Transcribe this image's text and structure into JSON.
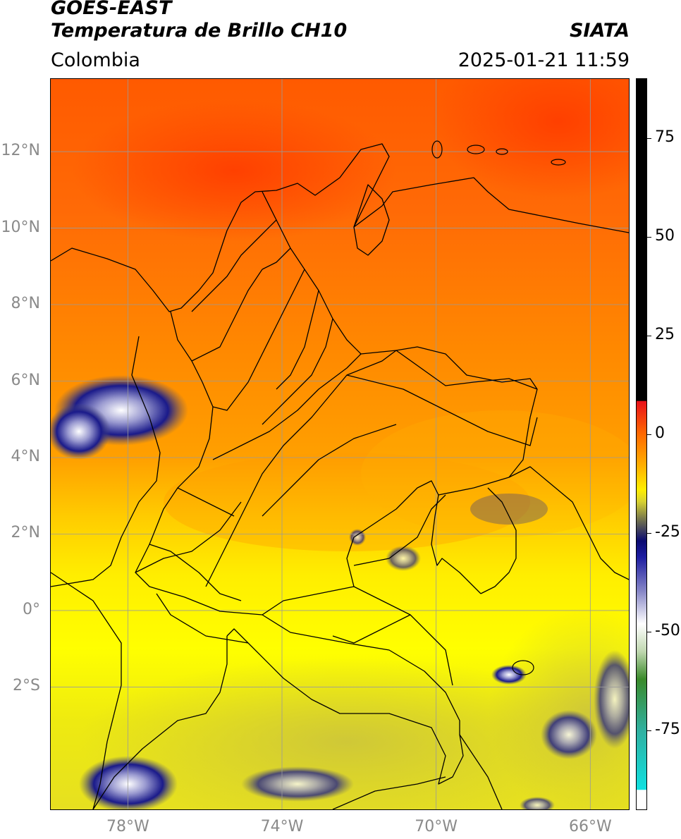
{
  "header": {
    "satellite": "GOES-EAST",
    "product": "Temperatura de Brillo CH10",
    "brand": "SIATA",
    "region": "Colombia",
    "datetime": "2025-01-21 11:59"
  },
  "map": {
    "lat_range": [
      -5.2,
      13.9
    ],
    "lon_range": [
      -80.0,
      -65.0
    ],
    "lat_ticks": [
      {
        "value": 12,
        "label": "12°N"
      },
      {
        "value": 10,
        "label": "10°N"
      },
      {
        "value": 8,
        "label": "8°N"
      },
      {
        "value": 6,
        "label": "6°N"
      },
      {
        "value": 4,
        "label": "4°N"
      },
      {
        "value": 2,
        "label": "2°N"
      },
      {
        "value": 0,
        "label": "0°"
      },
      {
        "value": -2,
        "label": "2°S"
      }
    ],
    "lon_ticks": [
      {
        "value": -78,
        "label": "78°W"
      },
      {
        "value": -74,
        "label": "74°W"
      },
      {
        "value": -70,
        "label": "70°W"
      },
      {
        "value": -66,
        "label": "66°W"
      }
    ],
    "gridlines": true
  },
  "colorbar": {
    "range": [
      -95,
      90
    ],
    "ticks": [
      {
        "value": 75,
        "label": "75"
      },
      {
        "value": 50,
        "label": "50"
      },
      {
        "value": 25,
        "label": "25"
      },
      {
        "value": 0,
        "label": "0"
      },
      {
        "value": -25,
        "label": "-25"
      },
      {
        "value": -50,
        "label": "-50"
      },
      {
        "value": -75,
        "label": "-75"
      }
    ],
    "stops": [
      {
        "value": 90,
        "color": "#000000"
      },
      {
        "value": 8.5,
        "color": "#000000"
      },
      {
        "value": 8.4,
        "color": "#e8101a"
      },
      {
        "value": 0,
        "color": "#ff6a00"
      },
      {
        "value": -8,
        "color": "#ffb000"
      },
      {
        "value": -14,
        "color": "#ffee00"
      },
      {
        "value": -17,
        "color": "#d8d230"
      },
      {
        "value": -22,
        "color": "#6b6b50"
      },
      {
        "value": -27,
        "color": "#0a0a70"
      },
      {
        "value": -31,
        "color": "#1c1ca0"
      },
      {
        "value": -40,
        "color": "#8a8ac8"
      },
      {
        "value": -48,
        "color": "#ffffff"
      },
      {
        "value": -55,
        "color": "#c0d8b0"
      },
      {
        "value": -62,
        "color": "#3a8a2a"
      },
      {
        "value": -75,
        "color": "#30b0a0"
      },
      {
        "value": -90,
        "color": "#10e0e0"
      },
      {
        "value": -90.1,
        "color": "#ffffff"
      },
      {
        "value": -95,
        "color": "#ffffff"
      }
    ]
  }
}
